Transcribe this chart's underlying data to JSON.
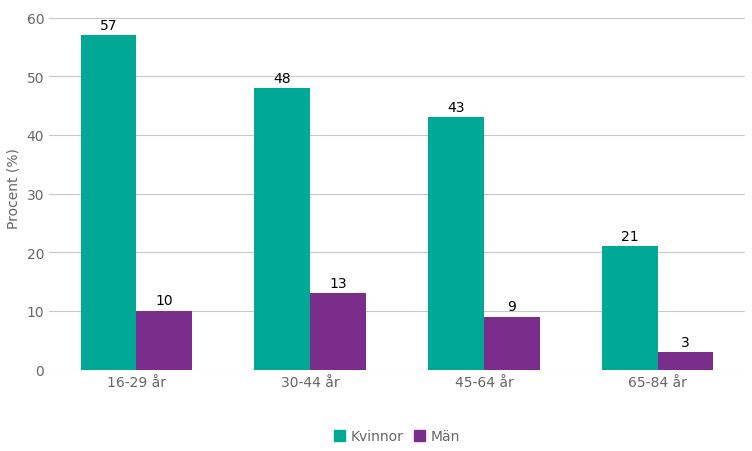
{
  "categories": [
    "16-29 år",
    "30-44 år",
    "45-64 år",
    "65-84 år"
  ],
  "kvinnor_values": [
    57,
    48,
    43,
    21
  ],
  "man_values": [
    10,
    13,
    9,
    3
  ],
  "kvinnor_color": "#00A896",
  "man_color": "#7B2D8B",
  "ylabel": "Procent (%)",
  "ylim": [
    0,
    62
  ],
  "yticks": [
    0,
    10,
    20,
    30,
    40,
    50,
    60
  ],
  "legend_labels": [
    "Kvinnor",
    "Män"
  ],
  "bar_width": 0.32,
  "background_color": "#ffffff",
  "grid_color": "#c8c8c8",
  "label_fontsize": 10,
  "axis_fontsize": 10,
  "value_fontsize": 10,
  "tick_color": "#666666",
  "figsize": [
    7.52,
    4.52
  ],
  "dpi": 100
}
